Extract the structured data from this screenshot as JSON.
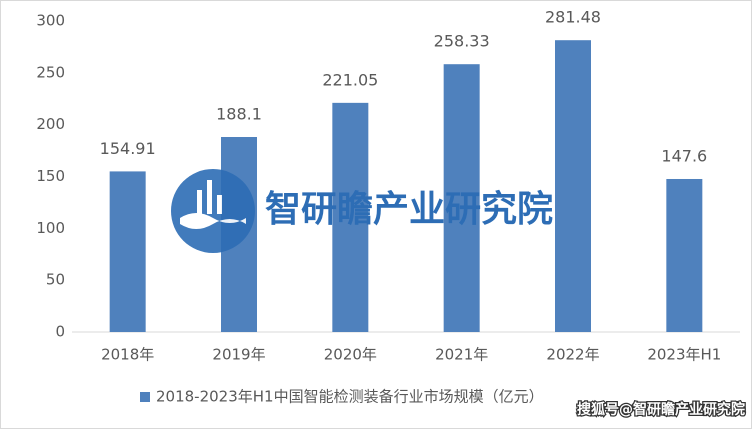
{
  "chart_data": {
    "type": "bar",
    "categories": [
      "2018年",
      "2019年",
      "2020年",
      "2021年",
      "2022年",
      "2023年H1"
    ],
    "series": [
      {
        "name": "2018-2023年H1中国智能检测装备行业市场规模（亿元）",
        "color": "#4f81bd",
        "values": [
          154.91,
          188.1,
          221.05,
          258.33,
          281.48,
          147.6
        ]
      }
    ],
    "ylim": [
      0,
      300
    ],
    "yticks": [
      0,
      50,
      100,
      150,
      200,
      250,
      300
    ],
    "grid": false,
    "legend": "bottom",
    "watermark": "智研瞻产业研究院",
    "source_watermark": "搜狐号@智研瞻产业研究院"
  }
}
